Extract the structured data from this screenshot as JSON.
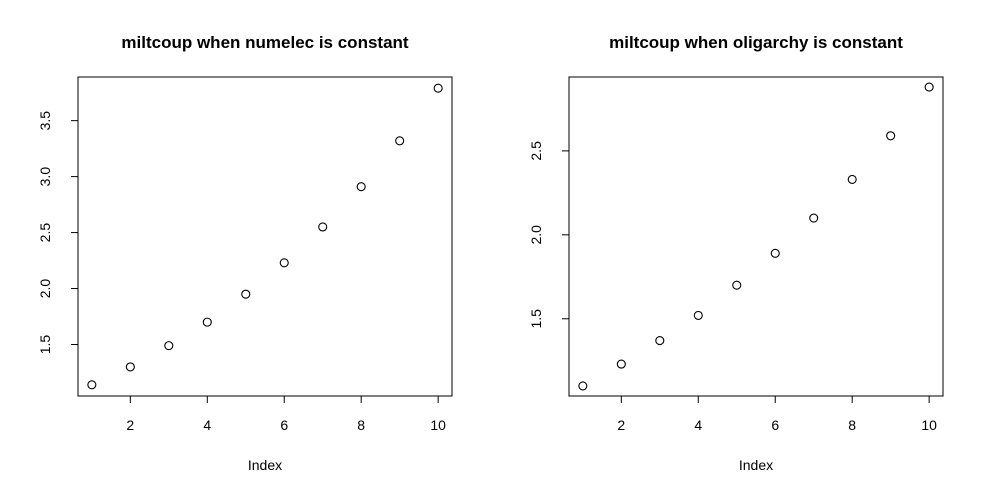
{
  "chart_data": [
    {
      "type": "scatter",
      "title": "miltcoup when numelec is constant",
      "xlabel": "Index",
      "ylabel": "",
      "x": [
        1,
        2,
        3,
        4,
        5,
        6,
        7,
        8,
        9,
        10
      ],
      "y": [
        1.14,
        1.3,
        1.49,
        1.7,
        1.95,
        2.23,
        2.55,
        2.91,
        3.32,
        3.79
      ],
      "xlim": [
        0.64,
        10.36
      ],
      "ylim": [
        1.04,
        3.89
      ],
      "xticks": [
        2,
        4,
        6,
        8,
        10
      ],
      "xtick_labels": [
        "2",
        "4",
        "6",
        "8",
        "10"
      ],
      "yticks": [
        1.5,
        2.0,
        2.5,
        3.0,
        3.5
      ],
      "ytick_labels": [
        "1.5",
        "2.0",
        "2.5",
        "3.0",
        "3.5"
      ],
      "grid": false
    },
    {
      "type": "scatter",
      "title": "miltcoup when oligarchy is constant",
      "xlabel": "Index",
      "ylabel": "",
      "x": [
        1,
        2,
        3,
        4,
        5,
        6,
        7,
        8,
        9,
        10
      ],
      "y": [
        1.1,
        1.23,
        1.37,
        1.52,
        1.7,
        1.89,
        2.1,
        2.33,
        2.59,
        2.88
      ],
      "xlim": [
        0.64,
        10.36
      ],
      "ylim": [
        1.04,
        2.94
      ],
      "xticks": [
        2,
        4,
        6,
        8,
        10
      ],
      "xtick_labels": [
        "2",
        "4",
        "6",
        "8",
        "10"
      ],
      "yticks": [
        1.5,
        2.0,
        2.5
      ],
      "ytick_labels": [
        "1.5",
        "2.0",
        "2.5"
      ],
      "grid": false
    }
  ]
}
